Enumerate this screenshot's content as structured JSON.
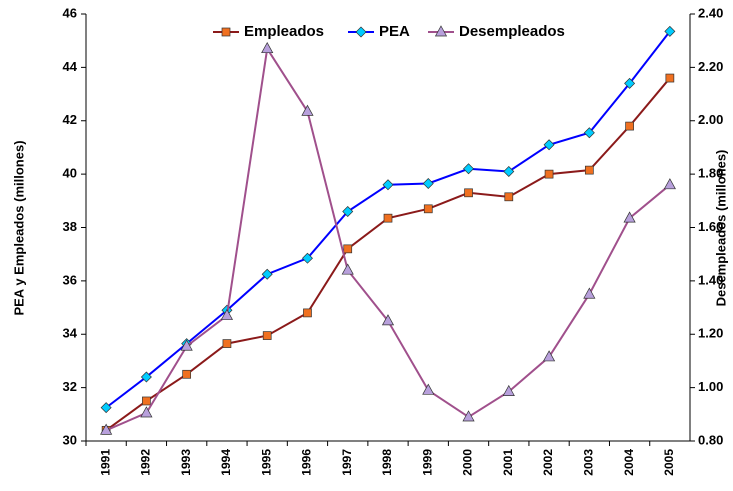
{
  "chart_data": {
    "type": "line",
    "categories": [
      "1991",
      "1992",
      "1993",
      "1994",
      "1995",
      "1996",
      "1997",
      "1998",
      "1999",
      "2000",
      "2001",
      "2002",
      "2003",
      "2004",
      "2005"
    ],
    "ylabel": "PEA y Empleados (millones)",
    "y2label": "Desempleados (millones)",
    "ylim": [
      30,
      46
    ],
    "yticks": [
      30,
      32,
      34,
      36,
      38,
      40,
      42,
      44,
      46
    ],
    "y2lim": [
      0.8,
      2.4
    ],
    "y2ticks": [
      {
        "value": 0.8,
        "label": "0.80"
      },
      {
        "value": 1.0,
        "label": "1.00"
      },
      {
        "value": 1.2,
        "label": "1.20"
      },
      {
        "value": 1.4,
        "label": "1.40"
      },
      {
        "value": 1.6,
        "label": "1.60"
      },
      {
        "value": 1.8,
        "label": "1.80"
      },
      {
        "value": 2.0,
        "label": "2.00"
      },
      {
        "value": 2.2,
        "label": "2.20"
      },
      {
        "value": 2.4,
        "label": "2.40"
      }
    ],
    "legend": "top",
    "series": [
      {
        "name": "Empleados",
        "color": "#8b1a1a",
        "marker_color": "#f07020",
        "marker": "square",
        "values": [
          30.4,
          31.5,
          32.5,
          33.65,
          33.95,
          34.8,
          37.2,
          38.35,
          38.7,
          39.3,
          39.15,
          40.0,
          40.15,
          41.8,
          43.6
        ]
      },
      {
        "name": "PEA",
        "color": "#0000ff",
        "marker_color": "#00ccff",
        "marker": "diamond",
        "values": [
          31.25,
          32.4,
          33.65,
          34.9,
          36.25,
          36.85,
          38.6,
          39.6,
          39.65,
          40.2,
          40.1,
          41.1,
          41.55,
          43.4,
          45.35
        ]
      },
      {
        "name": "Desempleados",
        "color": "#a0508c",
        "marker_color": "#b8a0dc",
        "marker": "triangle",
        "axis": "y2",
        "values": [
          0.84,
          0.905,
          1.155,
          1.27,
          2.27,
          2.035,
          1.44,
          1.25,
          0.99,
          0.89,
          0.985,
          1.115,
          1.35,
          1.635,
          1.76
        ]
      }
    ]
  }
}
